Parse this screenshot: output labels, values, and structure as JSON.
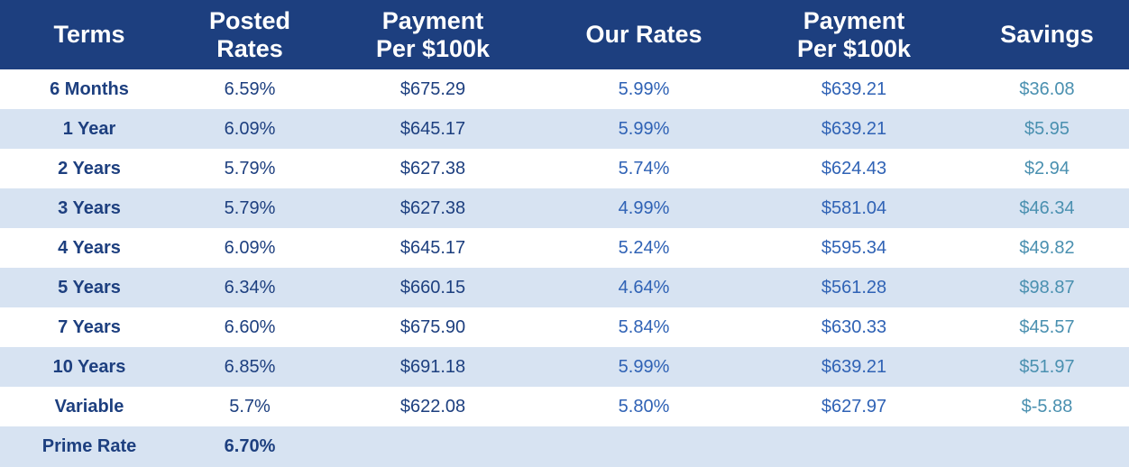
{
  "headers": {
    "terms": [
      "Terms"
    ],
    "posted_rates": [
      "Posted",
      "Rates"
    ],
    "payment_posted": [
      "Payment",
      "Per $100k"
    ],
    "our_rates": [
      "Our Rates"
    ],
    "payment_ours": [
      "Payment",
      "Per $100k"
    ],
    "savings": [
      "Savings"
    ]
  },
  "rows": [
    {
      "term": "6 Months",
      "posted": "6.59%",
      "payment_posted": "$675.29",
      "our_rate": "5.99%",
      "payment_ours": "$639.21",
      "savings": "$36.08"
    },
    {
      "term": "1 Year",
      "posted": "6.09%",
      "payment_posted": "$645.17",
      "our_rate": "5.99%",
      "payment_ours": "$639.21",
      "savings": "$5.95"
    },
    {
      "term": "2 Years",
      "posted": "5.79%",
      "payment_posted": "$627.38",
      "our_rate": "5.74%",
      "payment_ours": "$624.43",
      "savings": "$2.94"
    },
    {
      "term": "3 Years",
      "posted": "5.79%",
      "payment_posted": "$627.38",
      "our_rate": "4.99%",
      "payment_ours": "$581.04",
      "savings": "$46.34"
    },
    {
      "term": "4 Years",
      "posted": "6.09%",
      "payment_posted": "$645.17",
      "our_rate": "5.24%",
      "payment_ours": "$595.34",
      "savings": "$49.82"
    },
    {
      "term": "5 Years",
      "posted": "6.34%",
      "payment_posted": "$660.15",
      "our_rate": "4.64%",
      "payment_ours": "$561.28",
      "savings": "$98.87"
    },
    {
      "term": "7 Years",
      "posted": "6.60%",
      "payment_posted": "$675.90",
      "our_rate": "5.84%",
      "payment_ours": "$630.33",
      "savings": "$45.57"
    },
    {
      "term": "10 Years",
      "posted": "6.85%",
      "payment_posted": "$691.18",
      "our_rate": "5.99%",
      "payment_ours": "$639.21",
      "savings": "$51.97"
    },
    {
      "term": "Variable",
      "posted": "5.7%",
      "payment_posted": "$622.08",
      "our_rate": "5.80%",
      "payment_ours": "$627.97",
      "savings": "$-5.88"
    },
    {
      "term": "Prime Rate",
      "posted": "6.70%",
      "payment_posted": "",
      "our_rate": "",
      "payment_ours": "",
      "savings": ""
    }
  ],
  "colors": {
    "header_bg": "#1d3f7f",
    "band": "#d7e3f2",
    "term_text": "#1d3f7f",
    "our_rate_text": "#2f62b5",
    "savings_text": "#4a90b0"
  }
}
